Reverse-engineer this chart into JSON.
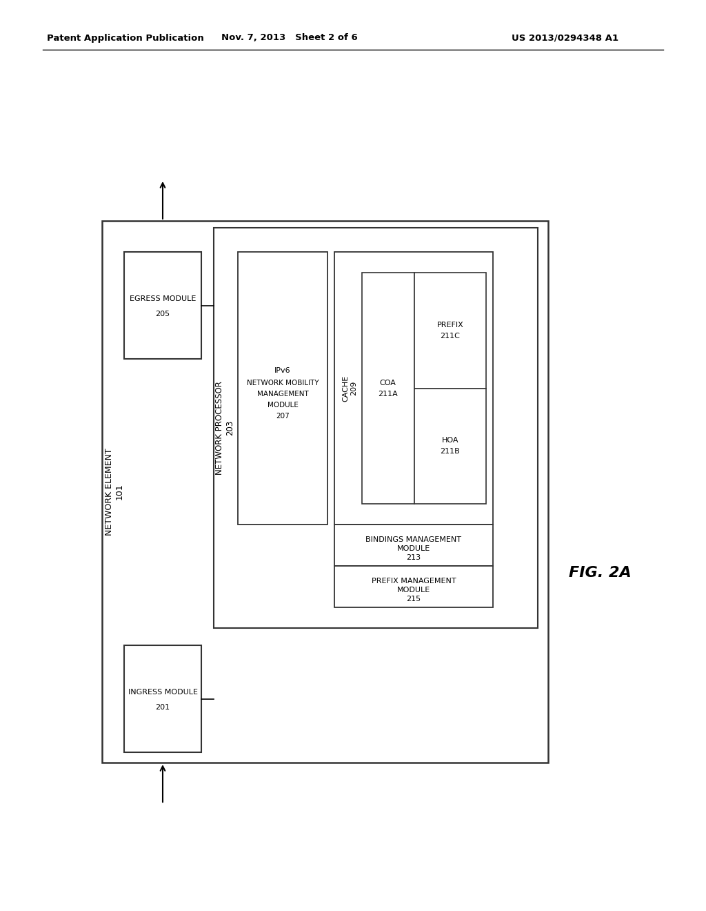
{
  "bg_color": "#ffffff",
  "header_left": "Patent Application Publication",
  "header_mid": "Nov. 7, 2013   Sheet 2 of 6",
  "header_right": "US 2013/0294348 A1",
  "fig_label": "FIG. 2A",
  "network_element_label": "NETWORK ELEMENT\n101",
  "network_processor_label": "NETWORK PROCESSOR\n203",
  "ipv6_module_label": "IPv6\nNETWORK MOBILITY\nMANAGEMENT\nMODULE\n207",
  "egress_module_label": "EGRESS MODULE\n205",
  "ingress_module_label": "INGRESS MODULE\n201",
  "cache_label": "CACHE\n209",
  "coa_label": "COA\n211A",
  "hoa_label": "HOA\n211B",
  "prefix_label": "PREFIX\n211C",
  "bindings_label": "BINDINGS MANAGEMENT\nMODULE\n213",
  "prefix_mgmt_label": "PREFIX MANAGEMENT\nMODULE\n215"
}
